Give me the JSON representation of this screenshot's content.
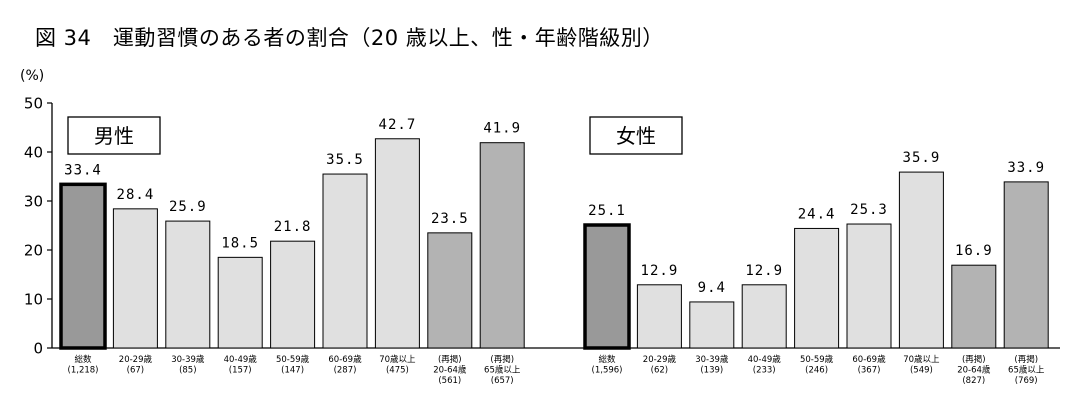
{
  "figure_title": "図 34　運動習慣のある者の割合（20 歳以上、性・年齢階級別）",
  "chart_data": {
    "type": "bar",
    "y_unit": "(%)",
    "ylim": [
      0,
      50
    ],
    "y_ticks": [
      0,
      10,
      20,
      30,
      40,
      50
    ],
    "grid": false,
    "colors": {
      "total": "#999999",
      "age_group": "#e0e0e0",
      "recount": "#b3b3b3",
      "outline": "#000000"
    },
    "panels": [
      {
        "name": "男性",
        "bars": [
          {
            "label": [
              "総数",
              "(1,218)"
            ],
            "value": 33.4,
            "value_label": "33.4",
            "kind": "total"
          },
          {
            "label": [
              "20-29歳",
              "(67)"
            ],
            "value": 28.4,
            "value_label": "28.4",
            "kind": "age_group"
          },
          {
            "label": [
              "30-39歳",
              "(85)"
            ],
            "value": 25.9,
            "value_label": "25.9",
            "kind": "age_group"
          },
          {
            "label": [
              "40-49歳",
              "(157)"
            ],
            "value": 18.5,
            "value_label": "18.5",
            "kind": "age_group"
          },
          {
            "label": [
              "50-59歳",
              "(147)"
            ],
            "value": 21.8,
            "value_label": "21.8",
            "kind": "age_group"
          },
          {
            "label": [
              "60-69歳",
              "(287)"
            ],
            "value": 35.5,
            "value_label": "35.5",
            "kind": "age_group"
          },
          {
            "label": [
              "70歳以上",
              "(475)"
            ],
            "value": 42.7,
            "value_label": "42.7",
            "kind": "age_group"
          },
          {
            "label": [
              "(再掲)",
              "20-64歳",
              "(561)"
            ],
            "value": 23.5,
            "value_label": "23.5",
            "kind": "recount"
          },
          {
            "label": [
              "(再掲)",
              "65歳以上",
              "(657)"
            ],
            "value": 41.9,
            "value_label": "41.9",
            "kind": "recount"
          }
        ]
      },
      {
        "name": "女性",
        "bars": [
          {
            "label": [
              "総数",
              "(1,596)"
            ],
            "value": 25.1,
            "value_label": "25.1",
            "kind": "total"
          },
          {
            "label": [
              "20-29歳",
              "(62)"
            ],
            "value": 12.9,
            "value_label": "12.9",
            "kind": "age_group"
          },
          {
            "label": [
              "30-39歳",
              "(139)"
            ],
            "value": 9.4,
            "value_label": "9.4",
            "kind": "age_group"
          },
          {
            "label": [
              "40-49歳",
              "(233)"
            ],
            "value": 12.9,
            "value_label": "12.9",
            "kind": "age_group"
          },
          {
            "label": [
              "50-59歳",
              "(246)"
            ],
            "value": 24.4,
            "value_label": "24.4",
            "kind": "age_group"
          },
          {
            "label": [
              "60-69歳",
              "(367)"
            ],
            "value": 25.3,
            "value_label": "25.3",
            "kind": "age_group"
          },
          {
            "label": [
              "70歳以上",
              "(549)"
            ],
            "value": 35.9,
            "value_label": "35.9",
            "kind": "age_group"
          },
          {
            "label": [
              "(再掲)",
              "20-64歳",
              "(827)"
            ],
            "value": 16.9,
            "value_label": "16.9",
            "kind": "recount"
          },
          {
            "label": [
              "(再掲)",
              "65歳以上",
              "(769)"
            ],
            "value": 33.9,
            "value_label": "33.9",
            "kind": "recount"
          }
        ]
      }
    ]
  }
}
